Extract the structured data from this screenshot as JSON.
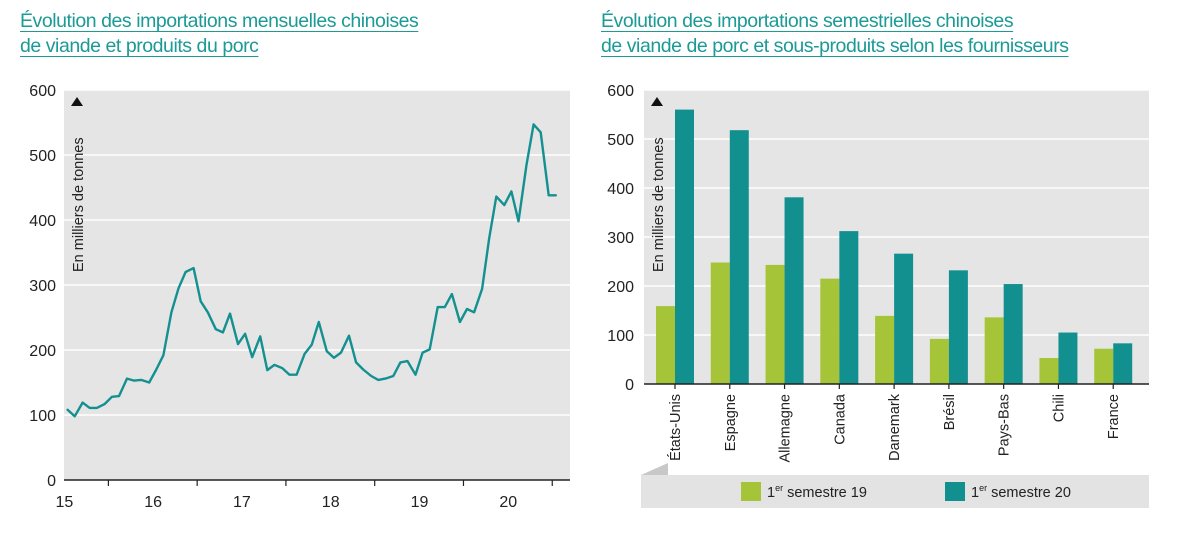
{
  "chart_data": [
    {
      "type": "line",
      "title_lines": [
        "Évolution des importations mensuelles chinoises",
        "de viande et produits du porc"
      ],
      "ylabel": "En milliers de tonnes",
      "ylim": [
        0,
        600
      ],
      "yticks": [
        0,
        100,
        200,
        300,
        400,
        500,
        600
      ],
      "xlim": [
        2014.5,
        2020.2
      ],
      "xticks": [
        {
          "value": 2015,
          "label": "15"
        },
        {
          "value": 2016,
          "label": "16"
        },
        {
          "value": 2017,
          "label": "17"
        },
        {
          "value": 2018,
          "label": "18"
        },
        {
          "value": 2019,
          "label": "19"
        },
        {
          "value": 2020,
          "label": "20"
        }
      ],
      "color": "#149090",
      "series": [
        {
          "x": [
            2014.54,
            2014.62,
            2014.71,
            2014.79,
            2014.87,
            2014.96,
            2015.04,
            2015.12,
            2015.21,
            2015.29,
            2015.37,
            2015.46,
            2015.54,
            2015.62,
            2015.71,
            2015.79,
            2015.87,
            2015.96,
            2016.04,
            2016.12,
            2016.21,
            2016.29,
            2016.37,
            2016.46,
            2016.54,
            2016.62,
            2016.71,
            2016.79,
            2016.87,
            2016.96,
            2017.04,
            2017.12,
            2017.21,
            2017.29,
            2017.37,
            2017.46,
            2017.54,
            2017.62,
            2017.71,
            2017.79,
            2017.87,
            2017.96,
            2018.04,
            2018.12,
            2018.21,
            2018.29,
            2018.37,
            2018.46,
            2018.54,
            2018.62,
            2018.71,
            2018.79,
            2018.87,
            2018.96,
            2019.04,
            2019.12,
            2019.21,
            2019.29,
            2019.37,
            2019.46,
            2019.54,
            2019.62,
            2019.71,
            2019.79,
            2019.87,
            2019.96,
            2020.04
          ],
          "y": [
            108,
            98,
            119,
            111,
            111,
            117,
            128,
            129,
            156,
            153,
            154,
            150,
            170,
            192,
            258,
            295,
            320,
            326,
            275,
            258,
            232,
            227,
            256,
            209,
            225,
            189,
            221,
            169,
            177,
            172,
            162,
            162,
            194,
            208,
            243,
            198,
            188,
            196,
            222,
            181,
            170,
            160,
            154,
            156,
            160,
            181,
            183,
            162,
            196,
            201,
            266,
            266,
            286,
            243,
            263,
            258,
            294,
            372,
            436,
            423,
            444,
            398,
            485,
            547,
            535,
            438,
            438
          ]
        }
      ]
    },
    {
      "type": "bar",
      "title_lines": [
        "Évolution des importations semestrielles chinoises",
        "de viande de porc et sous-produits selon les fournisseurs"
      ],
      "ylabel": "En milliers de tonnes",
      "ylim": [
        0,
        600
      ],
      "yticks": [
        0,
        100,
        200,
        300,
        400,
        500,
        600
      ],
      "categories": [
        "États-Unis",
        "Espagne",
        "Allemagne",
        "Canada",
        "Danemark",
        "Brésil",
        "Pays-Bas",
        "Chili",
        "France"
      ],
      "series": [
        {
          "name": "semestre 19",
          "ordinal": "1",
          "ordinal_suffix": "er",
          "color": "#a6c438",
          "values": [
            159,
            248,
            243,
            215,
            139,
            92,
            136,
            53,
            72
          ]
        },
        {
          "name": "semestre 20",
          "ordinal": "1",
          "ordinal_suffix": "er",
          "color": "#12908f",
          "values": [
            560,
            518,
            381,
            312,
            266,
            232,
            204,
            105,
            83
          ]
        }
      ],
      "legend": "bottom"
    }
  ]
}
